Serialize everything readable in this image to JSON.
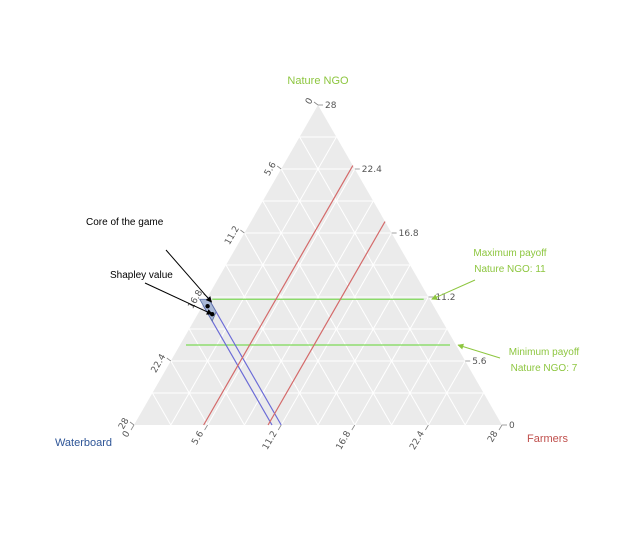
{
  "chart_data": {
    "type": "ternary",
    "total": 28,
    "grid_step": 2.8,
    "axes": {
      "top": {
        "name": "Nature NGO",
        "color": "#8dc63f",
        "ticks": [
          "0",
          "5.6",
          "11.2",
          "16.8",
          "22.4",
          "28"
        ]
      },
      "right": {
        "name": "Farmers",
        "color": "#c0504d",
        "ticks": [
          "28",
          "22.4",
          "16.8",
          "11.2",
          "5.6",
          "0"
        ]
      },
      "left": {
        "name": "Waterboard",
        "color": "#2e5597",
        "ticks": [
          "0",
          "5.6",
          "11.2",
          "16.8",
          "22.4",
          "28"
        ]
      }
    },
    "constraint_lines": [
      {
        "label": "Nature NGO = 11",
        "axis": "top",
        "value": 11,
        "color": "#7ed957"
      },
      {
        "label": "Nature NGO = 7",
        "axis": "top",
        "value": 7,
        "color": "#7ed957"
      },
      {
        "label": "Waterboard = 17.5",
        "axis": "left",
        "value": 17.5,
        "color": "#6b6bd6"
      },
      {
        "label": "Waterboard = 16.8",
        "axis": "left",
        "value": 16.8,
        "color": "#6b6bd6"
      },
      {
        "label": "Farmers = 10.2",
        "axis": "right",
        "value": 10.2,
        "color": "#d46a6a"
      },
      {
        "label": "Farmers = 5.3",
        "axis": "right",
        "value": 5.3,
        "color": "#d46a6a"
      }
    ],
    "core_region": [
      {
        "nature": 11,
        "waterboard": 16.8,
        "farmers": 0.2
      },
      {
        "nature": 11,
        "waterboard": 17.5,
        "farmers": -0.5
      },
      {
        "nature": 9.1,
        "waterboard": 17.5,
        "farmers": 1.4
      },
      {
        "nature": 9.9,
        "waterboard": 16.8,
        "farmers": 1.3
      }
    ],
    "core_fill": "#a9b8d6",
    "points": [
      {
        "label": "Core of the game",
        "nature": 10.4,
        "waterboard": 17.2,
        "farmers": 0.4
      },
      {
        "label": "Shapley value",
        "nature": 9.7,
        "waterboard": 17.2,
        "farmers": 1.1
      }
    ],
    "annotations": [
      {
        "lines": [
          "Core of the game"
        ],
        "color": "#000000",
        "target_point": 0
      },
      {
        "lines": [
          "Shapley value"
        ],
        "color": "#000000",
        "target_point": 1
      },
      {
        "lines": [
          "Maximum payoff",
          "Nature NGO: 11"
        ],
        "color": "#8dc63f",
        "target_line": 0
      },
      {
        "lines": [
          "Minimum payoff",
          "Nature NGO: 7"
        ],
        "color": "#8dc63f",
        "target_line": 1
      }
    ],
    "background": "#ebebeb",
    "grid_color": "#ffffff"
  }
}
